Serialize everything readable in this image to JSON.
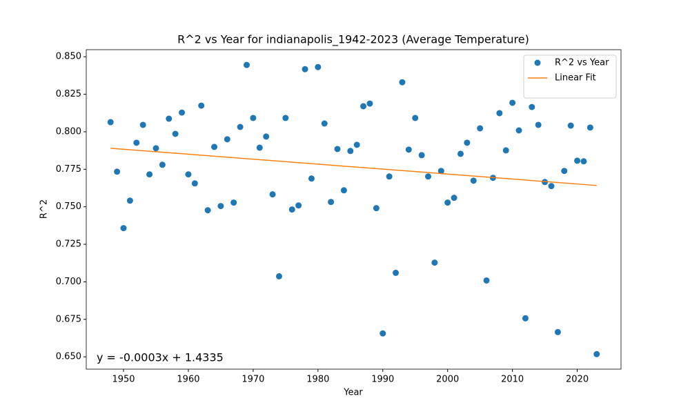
{
  "chart_data": {
    "type": "scatter",
    "title": "R^2 vs Year for indianapolis_1942-2023 (Average Temperature)",
    "xlabel": "Year",
    "ylabel": "R^2",
    "x": [
      1948,
      1949,
      1950,
      1951,
      1952,
      1953,
      1954,
      1955,
      1956,
      1957,
      1958,
      1959,
      1960,
      1961,
      1962,
      1963,
      1964,
      1965,
      1966,
      1967,
      1968,
      1969,
      1970,
      1971,
      1972,
      1973,
      1974,
      1975,
      1976,
      1977,
      1978,
      1979,
      1980,
      1981,
      1982,
      1983,
      1984,
      1985,
      1986,
      1987,
      1988,
      1989,
      1990,
      1991,
      1992,
      1993,
      1994,
      1995,
      1996,
      1997,
      1998,
      1999,
      2000,
      2001,
      2002,
      2003,
      2004,
      2005,
      2006,
      2007,
      2008,
      2009,
      2010,
      2011,
      2012,
      2013,
      2014,
      2015,
      2016,
      2017,
      2018,
      2019,
      2020,
      2021,
      2022,
      2023
    ],
    "series": [
      {
        "name": "R^2 vs Year",
        "color": "#1f77b4",
        "type": "scatter",
        "values": [
          0.8064,
          0.7734,
          0.7358,
          0.7541,
          0.7927,
          0.8046,
          0.7716,
          0.789,
          0.778,
          0.8087,
          0.7986,
          0.8128,
          0.7716,
          0.7656,
          0.8174,
          0.7477,
          0.7899,
          0.7505,
          0.795,
          0.7528,
          0.8032,
          0.8445,
          0.8092,
          0.7894,
          0.7968,
          0.7583,
          0.7037,
          0.8092,
          0.7482,
          0.7509,
          0.8417,
          0.7688,
          0.8431,
          0.8055,
          0.7532,
          0.7885,
          0.761,
          0.7872,
          0.7913,
          0.817,
          0.8188,
          0.7491,
          0.6656,
          0.7702,
          0.706,
          0.833,
          0.7881,
          0.8092,
          0.7844,
          0.7702,
          0.7128,
          0.7739,
          0.7528,
          0.756,
          0.7853,
          0.7927,
          0.7674,
          0.8023,
          0.7009,
          0.7693,
          0.8124,
          0.7876,
          0.8193,
          0.8009,
          0.6757,
          0.8165,
          0.8046,
          0.7665,
          0.7638,
          0.6665,
          0.7739,
          0.8041,
          0.7807,
          0.7803,
          0.8028,
          0.6518
        ]
      },
      {
        "name": "Linear Fit",
        "color": "#ff7f0e",
        "type": "line",
        "x": [
          1948,
          2023
        ],
        "values": [
          0.789,
          0.7642
        ]
      }
    ],
    "annotation": "y = -0.0003x + 1.4335",
    "xlim": [
      1944.25,
      2026.75
    ],
    "ylim": [
      0.6418,
      0.8547
    ],
    "xticks": [
      1950,
      1960,
      1970,
      1980,
      1990,
      2000,
      2010,
      2020
    ],
    "yticks": [
      {
        "value": 0.65,
        "label": "0.650"
      },
      {
        "value": 0.675,
        "label": "0.675"
      },
      {
        "value": 0.7,
        "label": "0.700"
      },
      {
        "value": 0.725,
        "label": "0.725"
      },
      {
        "value": 0.75,
        "label": "0.750"
      },
      {
        "value": 0.775,
        "label": "0.775"
      },
      {
        "value": 0.8,
        "label": "0.800"
      },
      {
        "value": 0.825,
        "label": "0.825"
      },
      {
        "value": 0.85,
        "label": "0.850"
      }
    ],
    "legend": "upper right"
  }
}
